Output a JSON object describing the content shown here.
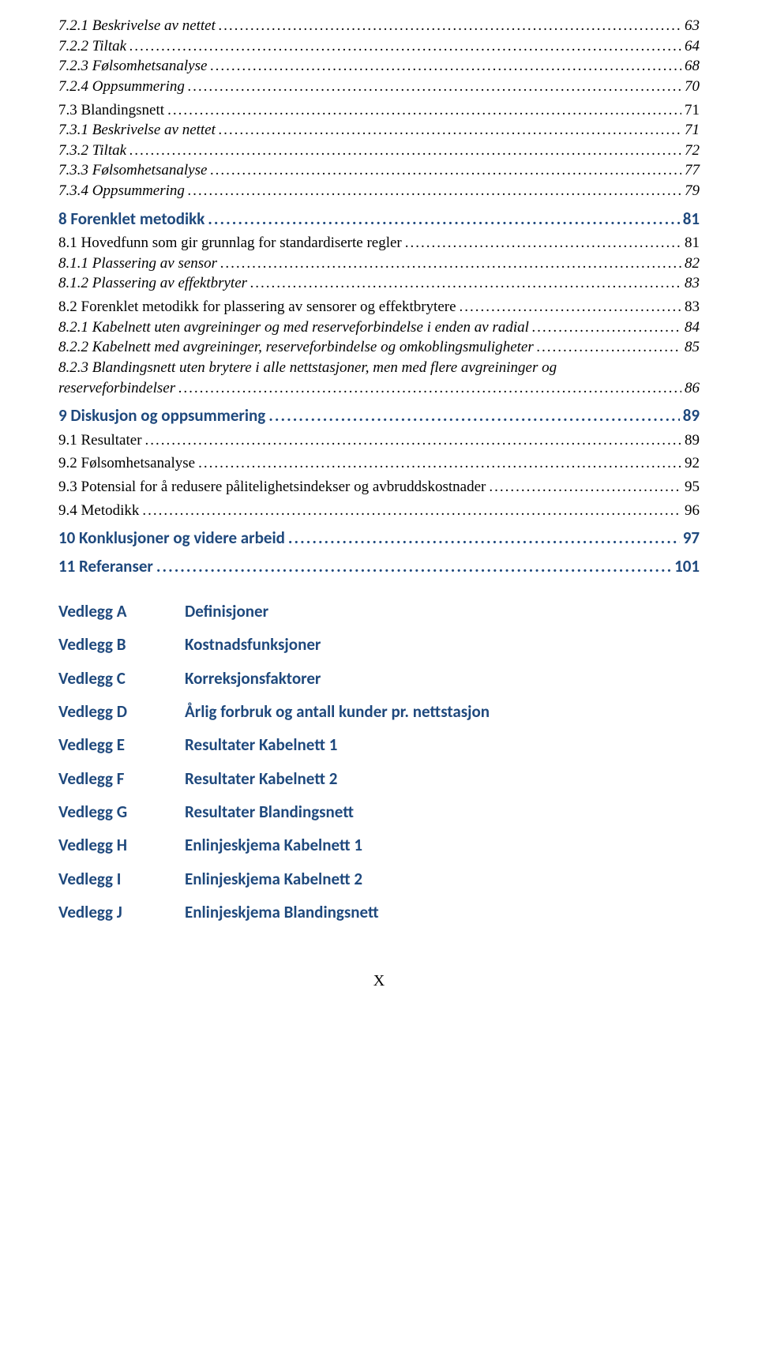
{
  "toc": [
    {
      "level": 3,
      "italic": true,
      "label": "7.2.1   Beskrivelse av nettet",
      "page": "63"
    },
    {
      "level": 3,
      "italic": true,
      "label": "7.2.2   Tiltak",
      "page": "64"
    },
    {
      "level": 3,
      "italic": true,
      "label": "7.2.3   Følsomhetsanalyse",
      "page": "68"
    },
    {
      "level": 3,
      "italic": true,
      "label": "7.2.4   Oppsummering",
      "page": "70"
    },
    {
      "level": 2,
      "italic": false,
      "label": "7.3   Blandingsnett",
      "page": "71"
    },
    {
      "level": 3,
      "italic": true,
      "label": "7.3.1   Beskrivelse av nettet",
      "page": "71"
    },
    {
      "level": 3,
      "italic": true,
      "label": "7.3.2   Tiltak",
      "page": "72"
    },
    {
      "level": 3,
      "italic": true,
      "label": "7.3.3   Følsomhetsanalyse",
      "page": "77"
    },
    {
      "level": 3,
      "italic": true,
      "label": "7.3.4   Oppsummering",
      "page": "79"
    },
    {
      "level": 1,
      "italic": false,
      "label": "8    Forenklet metodikk",
      "page": "81"
    },
    {
      "level": 2,
      "italic": false,
      "label": "8.1   Hovedfunn som gir grunnlag for standardiserte regler",
      "page": "81"
    },
    {
      "level": 3,
      "italic": true,
      "label": "8.1.1   Plassering av sensor",
      "page": "82"
    },
    {
      "level": 3,
      "italic": true,
      "label": "8.1.2   Plassering av effektbryter",
      "page": "83"
    },
    {
      "level": 2,
      "italic": false,
      "label": "8.2   Forenklet metodikk for plassering av sensorer og effektbrytere",
      "page": "83"
    },
    {
      "level": 3,
      "italic": true,
      "label": "8.2.1   Kabelnett uten avgreininger og med reserveforbindelse i enden av radial",
      "page": "84"
    },
    {
      "level": 3,
      "italic": true,
      "label": "8.2.2   Kabelnett med avgreininger, reserveforbindelse og omkoblingsmuligheter",
      "page": "85"
    },
    {
      "level": 3,
      "italic": true,
      "label": "8.2.3   Blandingsnett uten brytere i alle nettstasjoner, men med flere avgreininger og reserveforbindelser",
      "page": "86",
      "wrap": true
    },
    {
      "level": 1,
      "italic": false,
      "label": "9    Diskusjon og oppsummering",
      "page": "89"
    },
    {
      "level": 2,
      "italic": false,
      "label": "9.1   Resultater",
      "page": "89"
    },
    {
      "level": 2,
      "italic": false,
      "label": "9.2   Følsomhetsanalyse",
      "page": "92"
    },
    {
      "level": 2,
      "italic": false,
      "label": "9.3   Potensial for å redusere pålitelighetsindekser og avbruddskostnader",
      "page": "95"
    },
    {
      "level": 2,
      "italic": false,
      "label": "9.4   Metodikk",
      "page": "96"
    },
    {
      "level": 1,
      "italic": false,
      "label": "10   Konklusjoner og videre arbeid",
      "page": "97"
    },
    {
      "level": 1,
      "italic": false,
      "label": "11   Referanser",
      "page": "101"
    }
  ],
  "vedlegg": [
    {
      "key": "Vedlegg A",
      "val": "Definisjoner"
    },
    {
      "key": "Vedlegg B",
      "val": "Kostnadsfunksjoner"
    },
    {
      "key": "Vedlegg C",
      "val": "Korreksjonsfaktorer"
    },
    {
      "key": "Vedlegg D",
      "val": "Årlig forbruk og antall kunder pr. nettstasjon"
    },
    {
      "key": "Vedlegg E",
      "val": "Resultater Kabelnett 1"
    },
    {
      "key": "Vedlegg F",
      "val": "Resultater Kabelnett 2"
    },
    {
      "key": "Vedlegg G",
      "val": "Resultater Blandingsnett"
    },
    {
      "key": "Vedlegg H",
      "val": "Enlinjeskjema Kabelnett 1"
    },
    {
      "key": "Vedlegg I",
      "val": "Enlinjeskjema Kabelnett 2"
    },
    {
      "key": "Vedlegg J",
      "val": "Enlinjeskjema Blandingsnett"
    }
  ],
  "page_number": "X",
  "colors": {
    "heading": "#1f497d",
    "body": "#000000",
    "background": "#ffffff"
  },
  "fonts": {
    "heading_family": "Calibri, Arial, sans-serif",
    "body_family": "Times New Roman, serif",
    "heading_size_pt": 16,
    "body_size_pt": 14
  }
}
